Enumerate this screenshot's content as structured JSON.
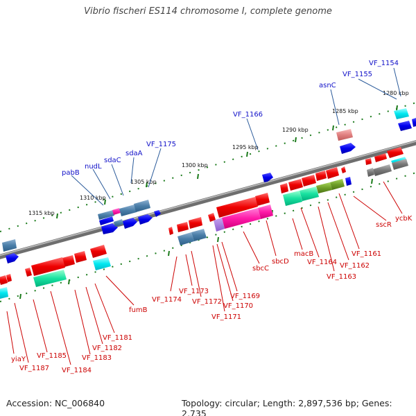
{
  "title": "Vibrio fischeri ES114 chromosome I, complete genome",
  "footer": {
    "accession": "Accession: NC_006840",
    "topology": "Topology: circular; Length: 2,897,536 bp; Genes: 2,735"
  },
  "colors": {
    "backbone": "#8a8a8a",
    "forward_label": "#1010c8",
    "reverse_label": "#cc0000",
    "tick": "#1a7a1a"
  },
  "kbp_ticks": [
    "1280 kbp",
    "1285 kbp",
    "1290 kbp",
    "1295 kbp",
    "1300 kbp",
    "1305 kbp",
    "1310 kbp",
    "1315 kbp"
  ],
  "forward_genes": [
    "VF_1154",
    "VF_1155",
    "asnC",
    "VF_1166",
    "VF_1175",
    "sdaA",
    "sdaC",
    "nudL",
    "pabB"
  ],
  "reverse_genes": [
    "ycbK",
    "sscR",
    "VF_1161",
    "VF_1162",
    "VF_1163",
    "VF_1164",
    "macB",
    "sbcD",
    "sbcC",
    "VF_1169",
    "VF_1170",
    "VF_1171",
    "VF_1172",
    "VF_1173",
    "VF_1174",
    "fumB",
    "VF_1181",
    "VF_1182",
    "VF_1183",
    "VF_1184",
    "VF_1185",
    "VF_1187",
    "yiaY"
  ]
}
